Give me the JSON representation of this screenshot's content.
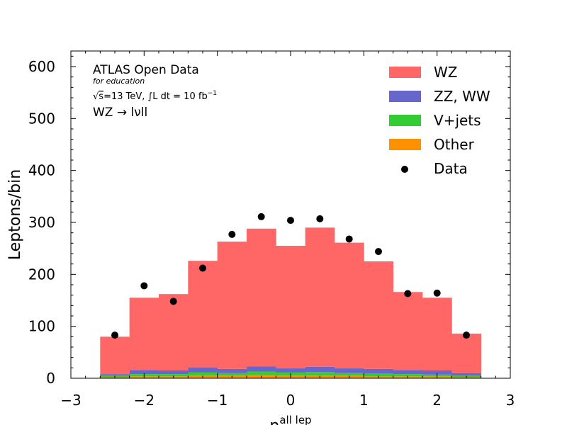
{
  "chart_data": {
    "type": "bar",
    "stacked": true,
    "bin_edges": [
      -2.6,
      -2.2,
      -1.8,
      -1.4,
      -1.0,
      -0.6,
      -0.2,
      0.2,
      0.6,
      1.0,
      1.4,
      1.8,
      2.2,
      2.6
    ],
    "series": [
      {
        "name": "Other",
        "color": "#ff9100",
        "values": [
          2,
          4,
          4,
          5,
          5,
          6,
          5,
          5,
          5,
          4,
          4,
          4,
          2
        ]
      },
      {
        "name": "V+jets",
        "color": "#33cc33",
        "values": [
          3,
          4,
          4,
          6,
          5,
          7,
          6,
          7,
          5,
          5,
          4,
          3,
          3
        ]
      },
      {
        "name": "ZZ, WW",
        "color": "#6666cc",
        "values": [
          3,
          8,
          7,
          10,
          8,
          10,
          8,
          10,
          9,
          9,
          8,
          8,
          5
        ]
      },
      {
        "name": "WZ",
        "color": "#ff6666",
        "values": [
          72,
          139,
          147,
          205,
          245,
          265,
          236,
          268,
          242,
          207,
          150,
          140,
          76
        ]
      }
    ],
    "data_points": {
      "name": "Data",
      "color": "#000000",
      "x": [
        -2.4,
        -2.0,
        -1.6,
        -1.2,
        -0.8,
        -0.4,
        0.0,
        0.4,
        0.8,
        1.2,
        1.6,
        2.0,
        2.4
      ],
      "y": [
        83,
        178,
        148,
        212,
        277,
        311,
        304,
        307,
        268,
        244,
        163,
        164,
        83
      ]
    },
    "legend_order": [
      "WZ",
      "ZZ, WW",
      "V+jets",
      "Other",
      "Data"
    ],
    "legend_position": "top-right",
    "xlim": [
      -3,
      3
    ],
    "ylim": [
      0,
      630
    ],
    "xticks": [
      -3,
      -2,
      -1,
      0,
      1,
      2,
      3
    ],
    "xtick_labels": [
      "−3",
      "−2",
      "−1",
      "0",
      "1",
      "2",
      "3"
    ],
    "yticks": [
      0,
      100,
      200,
      300,
      400,
      500,
      600
    ],
    "ylabel": "Leptons/bin",
    "xlabel_main": "η",
    "xlabel_sup": "all lep",
    "grid": false
  },
  "annotations": {
    "experiment": "ATLAS Open Data",
    "subtitle": "for education",
    "sqrt_symbol": "√",
    "s_letter": "s",
    "energy_text": "=13 TeV, ∫L dt = 10 fb",
    "energy_exp": "−1",
    "process": "WZ → lνll"
  }
}
